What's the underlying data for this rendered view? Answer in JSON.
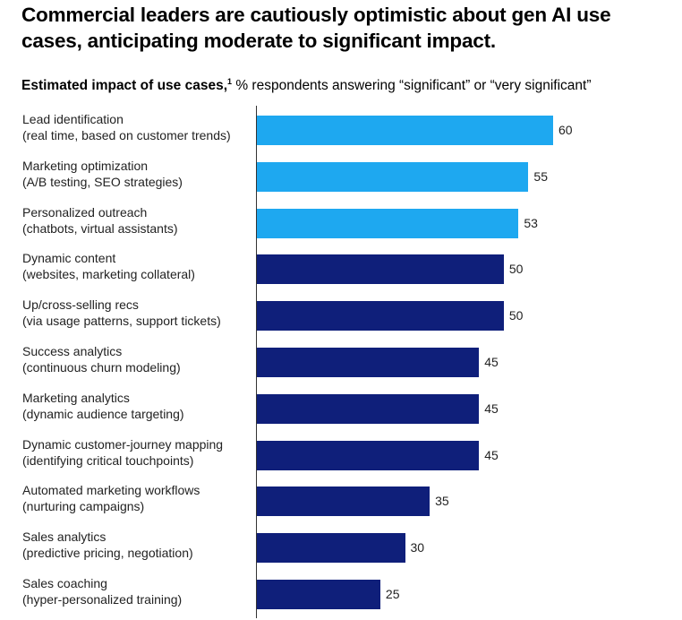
{
  "header": {
    "title": "Commercial leaders are cautiously optimistic about gen AI use cases, anticipating moderate to significant impact.",
    "subtitle_bold": "Estimated impact of use cases,",
    "subtitle_sup": "1",
    "subtitle_rest": " % respondents answering “significant” or “very significant”"
  },
  "colors": {
    "light": "#1ea8f0",
    "dark": "#0f1f7a"
  },
  "chart_data": {
    "type": "bar",
    "orientation": "horizontal",
    "categories": [
      [
        "Lead identification",
        "(real time, based on customer trends)"
      ],
      [
        "Marketing optimization",
        "(A/B testing, SEO strategies)"
      ],
      [
        "Personalized outreach",
        "(chatbots, virtual assistants)"
      ],
      [
        "Dynamic content",
        "(websites, marketing collateral)"
      ],
      [
        "Up/cross-selling recs",
        "(via usage patterns, support tickets)"
      ],
      [
        "Success analytics",
        "(continuous churn modeling)"
      ],
      [
        "Marketing analytics",
        "(dynamic audience targeting)"
      ],
      [
        "Dynamic customer-journey mapping",
        "(identifying critical touchpoints)"
      ],
      [
        "Automated marketing workflows",
        "(nurturing campaigns)"
      ],
      [
        "Sales analytics",
        "(predictive pricing, negotiation)"
      ],
      [
        "Sales coaching",
        "(hyper-personalized training)"
      ]
    ],
    "values": [
      60,
      55,
      53,
      50,
      50,
      45,
      45,
      45,
      35,
      30,
      25
    ],
    "highlight": [
      true,
      true,
      true,
      false,
      false,
      false,
      false,
      false,
      false,
      false,
      false
    ],
    "xlim": [
      0,
      60
    ]
  }
}
